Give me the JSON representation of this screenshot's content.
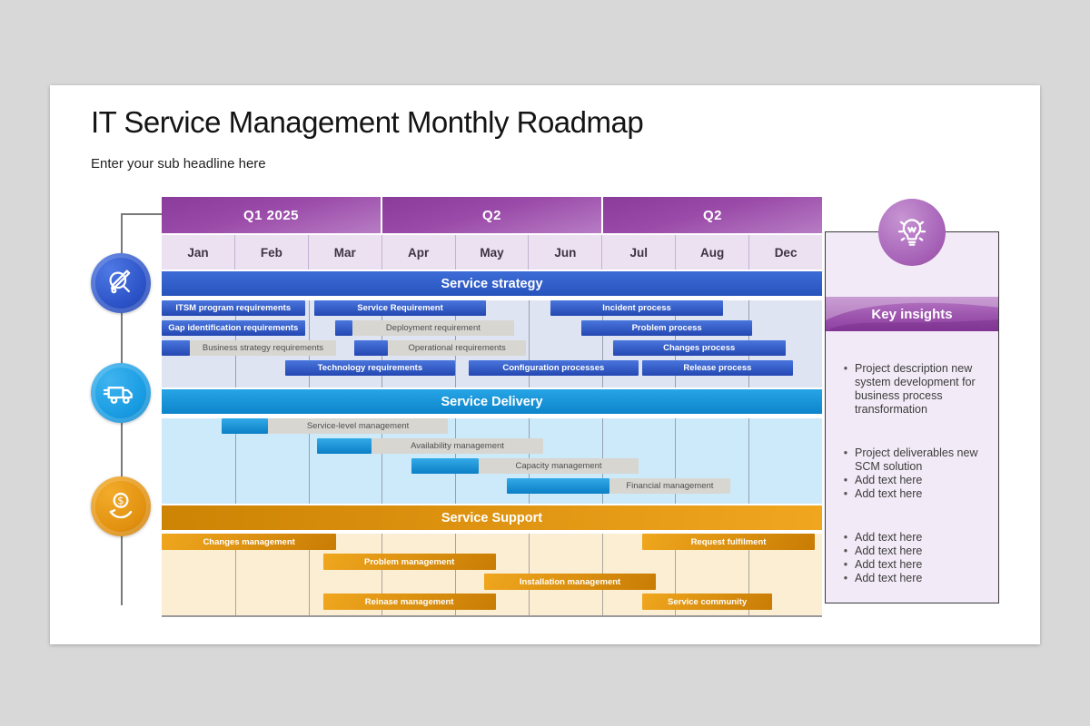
{
  "slide": {
    "title": "IT Service Management Monthly Roadmap",
    "subtitle": "Enter your sub headline here"
  },
  "colors": {
    "canvas_bg": "#d8d8d8",
    "slide_bg": "#ffffff",
    "quarter_top": "#8a3c9b",
    "quarter_mid": "#9a4aa8",
    "quarter_bottom": "#b77cc4",
    "month_bg": "#ece1f0",
    "month_text": "#3c3444",
    "strategy_header_light": "#3d6cd6",
    "strategy_header_dark": "#2753bd",
    "strategy_body_bg": "#dfe4f3",
    "blue_light": "#4a76dd",
    "blue_dark": "#2447b2",
    "delivery_header_light": "#28a5e6",
    "delivery_header_dark": "#0c84cb",
    "delivery_body_bg": "#cdeafb",
    "cyan_light": "#33aae8",
    "cyan_dark": "#0b7fc6",
    "support_header_light": "#f0a61f",
    "support_header_dark": "#cd8303",
    "support_body_bg": "#fbeed2",
    "orange_light": "#f0a71e",
    "orange_dark": "#c87c04",
    "gray_bar": "#d8d6d1",
    "gray_bar_text": "#4f4f4f",
    "rail_line": "#787878",
    "icon_strategy": "#2b52c6",
    "icon_delivery": "#189be2",
    "icon_support": "#e29110",
    "insights_panel_bg": "#f2eaf6",
    "insights_border": "#3a3a3a",
    "insights_banner": "#9d55ae",
    "insights_banner_dark": "#8e3fa2",
    "bulb_circle": "#a763b8",
    "bulb_circle_light": "#c795d3",
    "bullet_text": "#3c3c3c"
  },
  "timeline": {
    "quarters": [
      {
        "label": "Q1 2025",
        "span": 3
      },
      {
        "label": "Q2",
        "span": 3
      },
      {
        "label": "Q2",
        "span": 3
      }
    ],
    "months": [
      "Jan",
      "Feb",
      "Mar",
      "Apr",
      "May",
      "Jun",
      "Jul",
      "Aug",
      "Dec"
    ],
    "total_months": 9
  },
  "sections": [
    {
      "id": "strategy",
      "title": "Service strategy",
      "rows": [
        [
          {
            "label": "ITSM program requirements",
            "kind": "solid",
            "start": 0,
            "end": 1.95
          },
          {
            "label": "Service Requirement",
            "kind": "solid",
            "start": 2.08,
            "end": 4.42
          },
          {
            "label": "Incident process",
            "kind": "solid",
            "start": 5.3,
            "end": 7.65
          }
        ],
        [
          {
            "label": "Gap identification requirements",
            "kind": "solid",
            "start": 0,
            "end": 1.95
          },
          {
            "label": "Deployment requirement",
            "kind": "gray",
            "lead_start": 2.37,
            "lead_end": 2.6,
            "start": 2.6,
            "end": 4.8
          },
          {
            "label": "Problem process",
            "kind": "solid",
            "start": 5.72,
            "end": 8.05
          }
        ],
        [
          {
            "label": "Business strategy requirements",
            "kind": "gray",
            "lead_start": 0,
            "lead_end": 0.38,
            "start": 0.38,
            "end": 2.38
          },
          {
            "label": "Operational requirements",
            "kind": "gray",
            "lead_start": 2.63,
            "lead_end": 3.08,
            "start": 3.08,
            "end": 4.97
          },
          {
            "label": "Changes process",
            "kind": "solid",
            "start": 6.15,
            "end": 8.5
          }
        ],
        [
          {
            "label": "Technology requirements",
            "kind": "solid",
            "start": 1.68,
            "end": 4.0
          },
          {
            "label": "Configuration processes",
            "kind": "solid",
            "start": 4.18,
            "end": 6.5
          },
          {
            "label": "Release process",
            "kind": "solid",
            "start": 6.55,
            "end": 8.6
          }
        ]
      ]
    },
    {
      "id": "delivery",
      "title": "Service Delivery",
      "rows": [
        [
          {
            "label": "Service-level management",
            "kind": "gray",
            "lead_start": 0.82,
            "lead_end": 1.45,
            "start": 1.45,
            "end": 3.9
          }
        ],
        [
          {
            "label": "Availability management",
            "kind": "gray",
            "lead_start": 2.12,
            "lead_end": 2.86,
            "start": 2.86,
            "end": 5.2
          }
        ],
        [
          {
            "label": "Capacity management",
            "kind": "gray",
            "lead_start": 3.41,
            "lead_end": 4.32,
            "start": 4.32,
            "end": 6.5
          }
        ],
        [
          {
            "label": "Financial management",
            "kind": "gray",
            "lead_start": 4.7,
            "lead_end": 6.1,
            "start": 6.1,
            "end": 7.75
          }
        ]
      ]
    },
    {
      "id": "support",
      "title": "Service Support",
      "rows": [
        [
          {
            "label": "Changes management",
            "kind": "solid",
            "start": 0,
            "end": 2.38
          },
          {
            "label": "Request fulfilment",
            "kind": "solid",
            "start": 6.55,
            "end": 8.9
          }
        ],
        [
          {
            "label": "Problem management",
            "kind": "solid",
            "start": 2.2,
            "end": 4.55
          }
        ],
        [
          {
            "label": "Installation management",
            "kind": "solid",
            "start": 4.4,
            "end": 6.73
          }
        ],
        [
          {
            "label": "Reinase management",
            "kind": "solid",
            "start": 2.2,
            "end": 4.55
          },
          {
            "label": "Service community",
            "kind": "solid",
            "start": 6.55,
            "end": 8.32
          }
        ]
      ]
    }
  ],
  "side_icons": [
    {
      "name": "analysis-magnifier-icon",
      "section": "strategy"
    },
    {
      "name": "delivery-truck-icon",
      "section": "delivery"
    },
    {
      "name": "hand-coin-icon",
      "section": "support"
    }
  ],
  "insights": {
    "icon": "lightbulb-icon",
    "title": "Key insights",
    "groups": [
      [
        "Project description new system development for business process transformation"
      ],
      [
        "Project deliverables new SCM solution",
        "Add text here",
        "Add text here"
      ],
      [
        "Add text here",
        "Add text here",
        "Add text here",
        "Add text here"
      ]
    ]
  }
}
